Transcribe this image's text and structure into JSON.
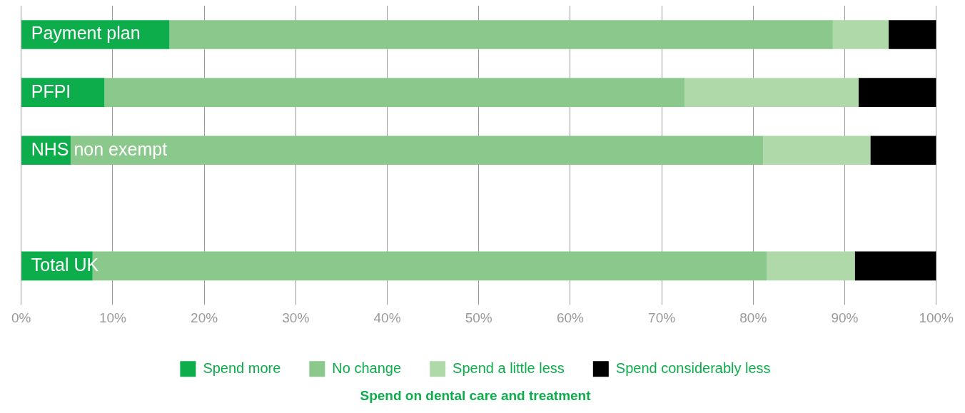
{
  "chart_data": {
    "type": "bar",
    "orientation": "horizontal",
    "stacked": true,
    "title": "Spend on dental care and treatment",
    "categories": [
      "Payment plan",
      "PFPI",
      "NHS non exempt",
      null,
      "Total UK"
    ],
    "series": [
      {
        "name": "Spend more",
        "color": "#0cad4a",
        "values": [
          16.2,
          9.1,
          5.4,
          null,
          7.8
        ]
      },
      {
        "name": "No change",
        "color": "#8bc88c",
        "values": [
          72.5,
          63.4,
          75.7,
          null,
          73.7
        ]
      },
      {
        "name": "Spend a little less",
        "color": "#b0d9aa",
        "values": [
          6.1,
          19.0,
          11.7,
          null,
          9.6
        ]
      },
      {
        "name": "Spend considerably less",
        "color": "#000000",
        "values": [
          5.2,
          8.5,
          7.2,
          null,
          8.9
        ]
      }
    ],
    "xlim": [
      0,
      100
    ],
    "xticks": [
      {
        "value": 0,
        "label": "0%"
      },
      {
        "value": 10,
        "label": "10%"
      },
      {
        "value": 20,
        "label": "20%"
      },
      {
        "value": 30,
        "label": "30%"
      },
      {
        "value": 40,
        "label": "40%"
      },
      {
        "value": 50,
        "label": "50%"
      },
      {
        "value": 60,
        "label": "60%"
      },
      {
        "value": 70,
        "label": "70%"
      },
      {
        "value": 80,
        "label": "80%"
      },
      {
        "value": 90,
        "label": "90%"
      },
      {
        "value": 100,
        "label": "100%"
      }
    ],
    "grid": "x",
    "legend": "bottom"
  }
}
